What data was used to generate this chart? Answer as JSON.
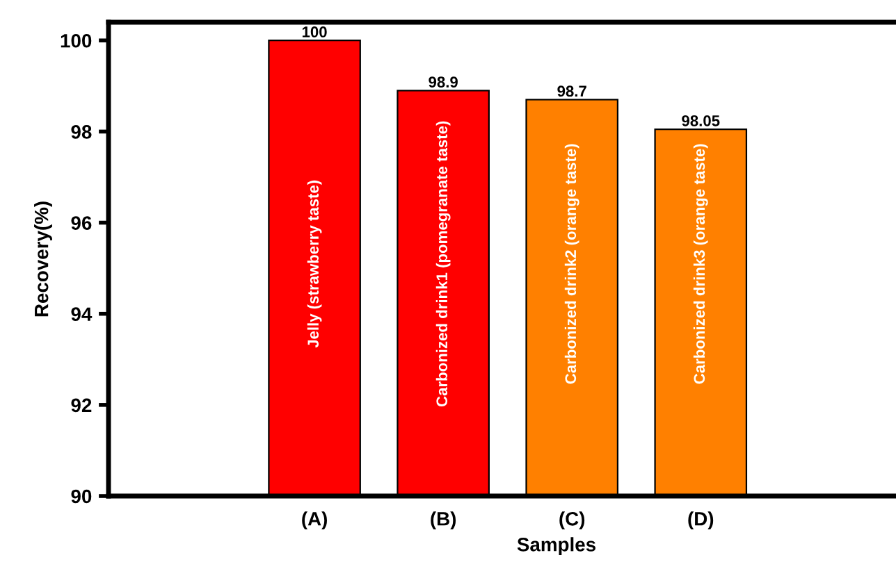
{
  "chart_data": {
    "type": "bar",
    "xlabel": "Samples",
    "ylabel": "Recovery(%)",
    "categories": [
      "(A)",
      "(B)",
      "(C)",
      "(D)"
    ],
    "values": [
      100,
      98.9,
      98.7,
      98.05
    ],
    "colors": [
      "#ff0000",
      "#ff0000",
      "#ff8000",
      "#ff8000"
    ],
    "ylim": [
      90,
      100.4
    ],
    "yticks": [
      90,
      92,
      94,
      96,
      98,
      100
    ],
    "grid": false,
    "data_labels": true,
    "annotations": [
      "Jelly (strawberry taste)",
      "Carbonized drink1 (pomegranate taste)",
      "Carbonized drink2 (orange taste)",
      "Carbonized drink3 (orange taste)"
    ]
  }
}
